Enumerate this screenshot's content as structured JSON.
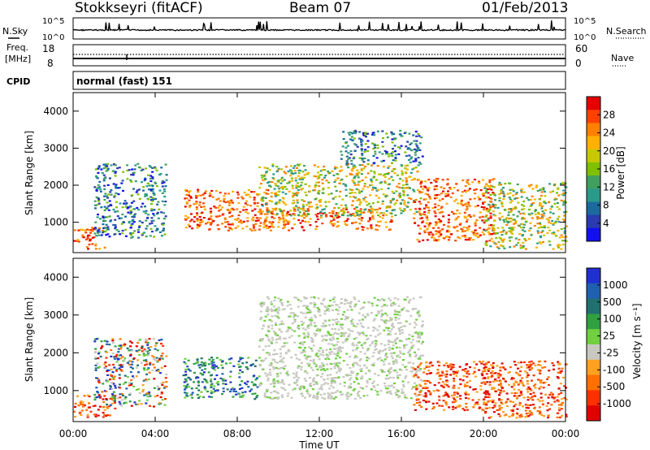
{
  "header": {
    "station": "Stokkseyri (fitACF)",
    "beam": "Beam 07",
    "date": "01/Feb/2013"
  },
  "noise_panel": {
    "left_label": "N.Sky",
    "left_ticks": [
      "10^5",
      "10^0"
    ],
    "right_ticks": [
      "10^5",
      "10^0"
    ],
    "right_label": "N.Search"
  },
  "freq_panel": {
    "left_label_1": "Freq.",
    "left_label_2": "[MHz]",
    "left_ticks": [
      "18",
      "8"
    ],
    "right_ticks": [
      "60",
      "0"
    ],
    "right_label": "Nave"
  },
  "cpid": {
    "label": "CPID",
    "value": "normal (fast) 151"
  },
  "chart_data": [
    {
      "type": "heatmap",
      "name": "power",
      "ylabel": "Slant Range [km]",
      "xlabel": "",
      "x_range_hours": [
        0,
        24
      ],
      "ylim": [
        180,
        4500
      ],
      "yticks": [
        "1000",
        "2000",
        "3000",
        "4000"
      ],
      "colorbar": {
        "label": "Power [dB]",
        "ticks": [
          "28",
          "24",
          "20",
          "16",
          "12",
          "8",
          "4"
        ],
        "colors": [
          "#e60000",
          "#ff4000",
          "#ff8000",
          "#ffb000",
          "#c8c800",
          "#7fc000",
          "#40a060",
          "#2a9a8a",
          "#1a6aa0",
          "#2a3ab0",
          "#1010ee"
        ]
      },
      "echo_regions": [
        {
          "t0": 0.0,
          "t1": 1.5,
          "r0": 300,
          "r1": 900,
          "level": "high"
        },
        {
          "t0": 1.0,
          "t1": 4.5,
          "r0": 600,
          "r1": 2600,
          "level": "low"
        },
        {
          "t0": 5.3,
          "t1": 9.5,
          "r0": 800,
          "r1": 1900,
          "level": "high"
        },
        {
          "t0": 9.0,
          "t1": 15.5,
          "r0": 800,
          "r1": 1400,
          "level": "high"
        },
        {
          "t0": 9.0,
          "t1": 17.0,
          "r0": 1200,
          "r1": 2600,
          "level": "mid"
        },
        {
          "t0": 13.0,
          "t1": 17.0,
          "r0": 2600,
          "r1": 3500,
          "level": "low"
        },
        {
          "t0": 16.5,
          "t1": 20.5,
          "r0": 500,
          "r1": 2200,
          "level": "high"
        },
        {
          "t0": 20.0,
          "t1": 24.0,
          "r0": 300,
          "r1": 2100,
          "level": "mid"
        }
      ]
    },
    {
      "type": "heatmap",
      "name": "velocity",
      "ylabel": "Slant Range [km]",
      "xlabel": "Time UT",
      "x_range_hours": [
        0,
        24
      ],
      "ylim": [
        180,
        4500
      ],
      "xticks": [
        "00:00",
        "04:00",
        "08:00",
        "12:00",
        "16:00",
        "20:00",
        "00:00"
      ],
      "yticks": [
        "1000",
        "2000",
        "3000",
        "4000"
      ],
      "colorbar": {
        "label": "Velocity [m s⁻¹]",
        "ticks": [
          "1000",
          "500",
          "100",
          "25",
          "-25",
          "-100",
          "-500",
          "-1000"
        ],
        "colors": [
          "#2030d0",
          "#2060b0",
          "#207070",
          "#30a040",
          "#70d040",
          "#c8c8c0",
          "#ffa020",
          "#ff7000",
          "#ff3000",
          "#e00000"
        ]
      },
      "echo_regions": [
        {
          "t0": 0.0,
          "t1": 2.0,
          "r0": 300,
          "r1": 900,
          "velocity": "negative"
        },
        {
          "t0": 1.0,
          "t1": 4.5,
          "r0": 600,
          "r1": 2400,
          "velocity": "mixed"
        },
        {
          "t0": 5.3,
          "t1": 9.0,
          "r0": 800,
          "r1": 1900,
          "velocity": "positive"
        },
        {
          "t0": 9.0,
          "t1": 17.0,
          "r0": 800,
          "r1": 3500,
          "velocity": "near-zero"
        },
        {
          "t0": 16.5,
          "t1": 20.5,
          "r0": 500,
          "r1": 1800,
          "velocity": "negative"
        },
        {
          "t0": 20.0,
          "t1": 24.0,
          "r0": 300,
          "r1": 1800,
          "velocity": "negative"
        }
      ]
    }
  ]
}
